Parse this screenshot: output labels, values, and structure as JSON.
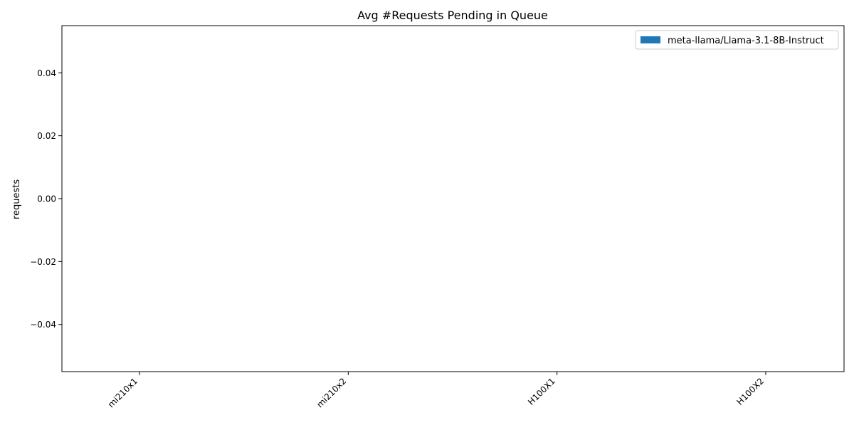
{
  "chart_data": {
    "type": "bar",
    "title": "Avg #Requests Pending in Queue",
    "xlabel": "",
    "ylabel": "requests",
    "categories": [
      "mi210x1",
      "mi210x2",
      "H100X1",
      "H100X2"
    ],
    "series": [
      {
        "name": "meta-llama/Llama-3.1-8B-Instruct",
        "color": "#1f77b4",
        "values": [
          0,
          0,
          0,
          0
        ]
      }
    ],
    "ylim": [
      -0.055,
      0.055
    ],
    "yticks": [
      -0.04,
      -0.02,
      0.0,
      0.02,
      0.04
    ],
    "ytick_labels": [
      "−0.04",
      "−0.02",
      "0.00",
      "0.02",
      "0.04"
    ],
    "grid": false,
    "legend_position": "top-right",
    "xtick_rotation": "45 degrees"
  }
}
